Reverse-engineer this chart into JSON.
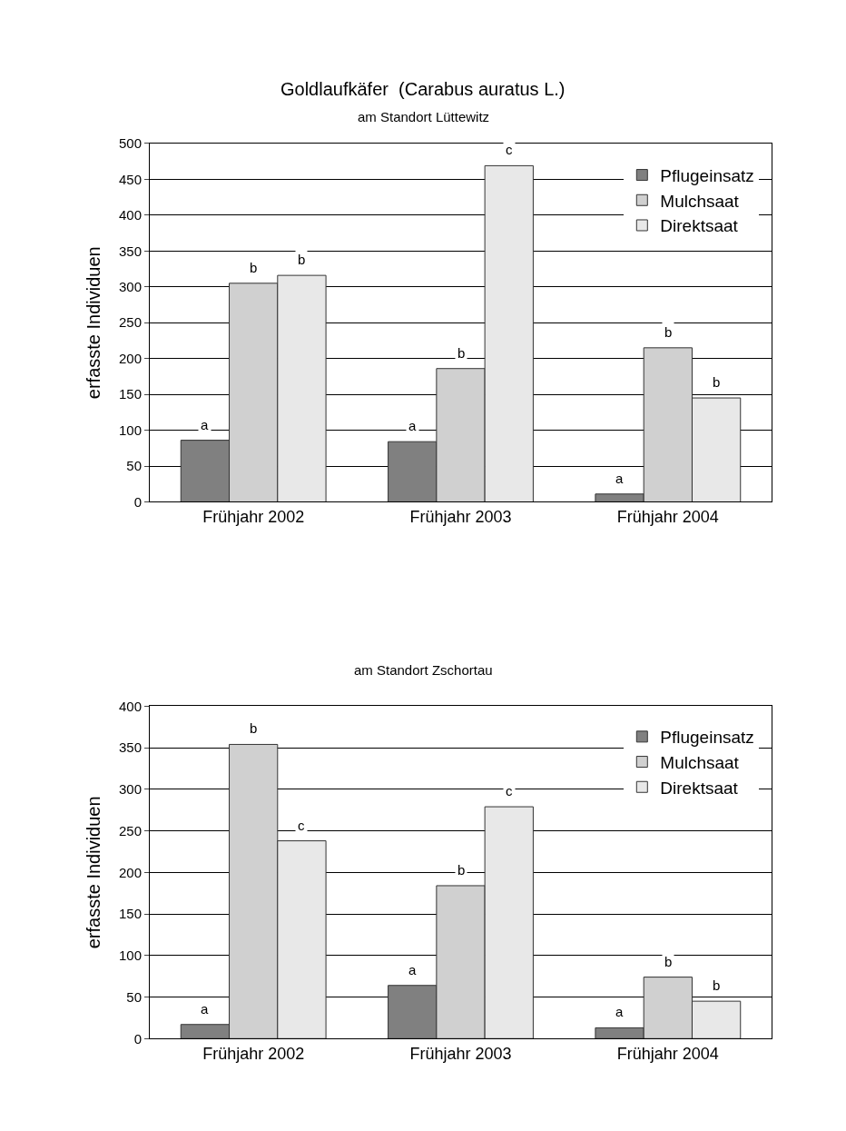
{
  "chart_data": [
    {
      "type": "bar",
      "title": "Goldlaufkäfer  (Carabus auratus L.)",
      "subtitle": "am Standort Lüttewitz",
      "ylabel": "erfasste Individuen",
      "categories": [
        "Frühjahr 2002",
        "Frühjahr 2003",
        "Frühjahr 2004"
      ],
      "series": [
        {
          "name": "Pflugeinsatz",
          "color": "#808080",
          "values": [
            86,
            84,
            11
          ],
          "value_labels": [
            "a",
            "a",
            "a"
          ]
        },
        {
          "name": "Mulchsaat",
          "color": "#d0d0d0",
          "values": [
            305,
            186,
            215
          ],
          "value_labels": [
            "b",
            "b",
            "b"
          ]
        },
        {
          "name": "Direktsaat",
          "color": "#e8e8e8",
          "values": [
            316,
            469,
            145
          ],
          "value_labels": [
            "b",
            "c",
            "b"
          ]
        }
      ],
      "ylim": [
        0,
        500
      ],
      "yticks": [
        0,
        50,
        100,
        150,
        200,
        250,
        300,
        350,
        400,
        450,
        500
      ],
      "grid": "y",
      "legend": "top right"
    },
    {
      "type": "bar",
      "subtitle": "am Standort Zschortau",
      "ylabel": "erfasste Individuen",
      "categories": [
        "Frühjahr 2002",
        "Frühjahr 2003",
        "Frühjahr 2004"
      ],
      "series": [
        {
          "name": "Pflugeinsatz",
          "color": "#808080",
          "values": [
            17,
            64,
            13
          ],
          "value_labels": [
            "a",
            "a",
            "a"
          ]
        },
        {
          "name": "Mulchsaat",
          "color": "#d0d0d0",
          "values": [
            354,
            184,
            74
          ],
          "value_labels": [
            "b",
            "b",
            "b"
          ]
        },
        {
          "name": "Direktsaat",
          "color": "#e8e8e8",
          "values": [
            238,
            279,
            45
          ],
          "value_labels": [
            "c",
            "c",
            "b"
          ]
        }
      ],
      "ylim": [
        0,
        400
      ],
      "yticks": [
        0,
        50,
        100,
        150,
        200,
        250,
        300,
        350,
        400
      ],
      "grid": "y",
      "legend": "top right"
    }
  ]
}
